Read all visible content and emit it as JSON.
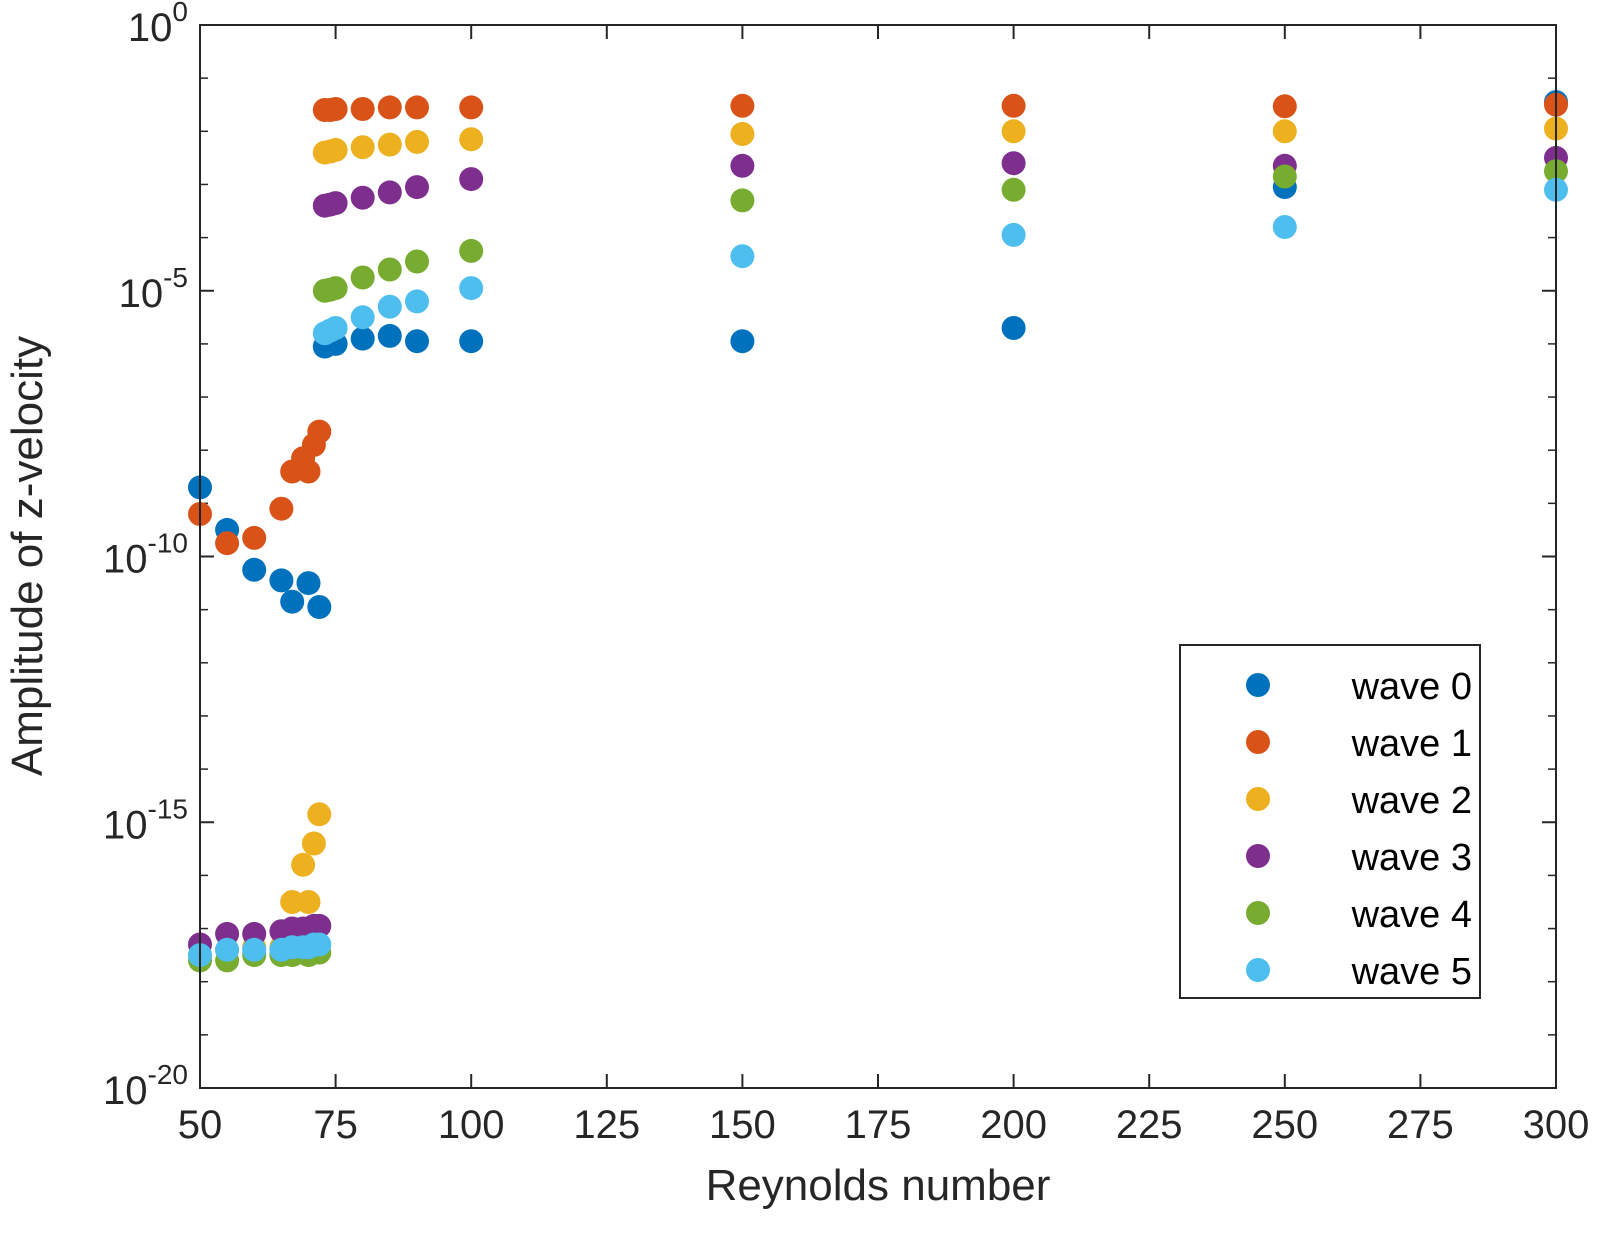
{
  "chart_data": {
    "type": "scatter",
    "xlabel": "Reynolds number",
    "ylabel": "Amplitude of z-velocity",
    "yscale": "log",
    "xlim": [
      50,
      300
    ],
    "ylim_exponents": [
      -20,
      0
    ],
    "x_ticks": [
      "50",
      "75",
      "100",
      "125",
      "150",
      "175",
      "200",
      "225",
      "250",
      "275",
      "300"
    ],
    "y_ticks": [
      {
        "base": "10",
        "exp": "0",
        "value_exp": 0
      },
      {
        "base": "10",
        "exp": "-5",
        "value_exp": -5
      },
      {
        "base": "10",
        "exp": "-10",
        "value_exp": -10
      },
      {
        "base": "10",
        "exp": "-15",
        "value_exp": -15
      },
      {
        "base": "10",
        "exp": "-20",
        "value_exp": -20
      }
    ],
    "legend_position": "lower-right",
    "series": [
      {
        "name": "wave 0",
        "color": "#0072BD",
        "points": [
          [
            50,
            -8.7
          ],
          [
            55,
            -9.5
          ],
          [
            60,
            -10.25
          ],
          [
            65,
            -10.45
          ],
          [
            67,
            -10.85
          ],
          [
            70,
            -10.5
          ],
          [
            72,
            -10.95
          ],
          [
            73,
            -6.05
          ],
          [
            75,
            -6.0
          ],
          [
            80,
            -5.9
          ],
          [
            85,
            -5.85
          ],
          [
            90,
            -5.95
          ],
          [
            100,
            -5.95
          ],
          [
            150,
            -5.95
          ],
          [
            200,
            -5.7
          ],
          [
            250,
            -3.05
          ],
          [
            300,
            -1.45
          ]
        ]
      },
      {
        "name": "wave 1",
        "color": "#D95319",
        "points": [
          [
            50,
            -9.2
          ],
          [
            55,
            -9.75
          ],
          [
            60,
            -9.65
          ],
          [
            65,
            -9.1
          ],
          [
            67,
            -8.4
          ],
          [
            69,
            -8.15
          ],
          [
            70,
            -8.4
          ],
          [
            71,
            -7.9
          ],
          [
            72,
            -7.65
          ],
          [
            73,
            -1.6
          ],
          [
            74,
            -1.6
          ],
          [
            75,
            -1.58
          ],
          [
            80,
            -1.58
          ],
          [
            85,
            -1.55
          ],
          [
            90,
            -1.55
          ],
          [
            100,
            -1.55
          ],
          [
            150,
            -1.52
          ],
          [
            200,
            -1.52
          ],
          [
            250,
            -1.53
          ],
          [
            300,
            -1.5
          ]
        ]
      },
      {
        "name": "wave 2",
        "color": "#EDB120",
        "points": [
          [
            50,
            -17.5
          ],
          [
            55,
            -17.4
          ],
          [
            60,
            -17.35
          ],
          [
            65,
            -17.35
          ],
          [
            67,
            -16.5
          ],
          [
            69,
            -15.8
          ],
          [
            70,
            -16.5
          ],
          [
            71,
            -15.4
          ],
          [
            72,
            -14.85
          ],
          [
            73,
            -2.4
          ],
          [
            74,
            -2.38
          ],
          [
            75,
            -2.35
          ],
          [
            80,
            -2.3
          ],
          [
            85,
            -2.25
          ],
          [
            90,
            -2.2
          ],
          [
            100,
            -2.15
          ],
          [
            150,
            -2.05
          ],
          [
            200,
            -2.0
          ],
          [
            250,
            -2.0
          ],
          [
            300,
            -1.95
          ]
        ]
      },
      {
        "name": "wave 3",
        "color": "#7E2F8E",
        "points": [
          [
            50,
            -17.3
          ],
          [
            55,
            -17.1
          ],
          [
            60,
            -17.1
          ],
          [
            65,
            -17.05
          ],
          [
            67,
            -17.0
          ],
          [
            69,
            -17.0
          ],
          [
            70,
            -17.0
          ],
          [
            71,
            -16.95
          ],
          [
            72,
            -16.95
          ],
          [
            73,
            -3.4
          ],
          [
            74,
            -3.38
          ],
          [
            75,
            -3.35
          ],
          [
            80,
            -3.25
          ],
          [
            85,
            -3.15
          ],
          [
            90,
            -3.05
          ],
          [
            100,
            -2.9
          ],
          [
            150,
            -2.65
          ],
          [
            200,
            -2.6
          ],
          [
            250,
            -2.65
          ],
          [
            300,
            -2.5
          ]
        ]
      },
      {
        "name": "wave 4",
        "color": "#77AC30",
        "points": [
          [
            50,
            -17.6
          ],
          [
            55,
            -17.6
          ],
          [
            60,
            -17.5
          ],
          [
            65,
            -17.5
          ],
          [
            67,
            -17.5
          ],
          [
            69,
            -17.45
          ],
          [
            70,
            -17.5
          ],
          [
            71,
            -17.45
          ],
          [
            72,
            -17.45
          ],
          [
            73,
            -5.0
          ],
          [
            74,
            -4.98
          ],
          [
            75,
            -4.95
          ],
          [
            80,
            -4.75
          ],
          [
            85,
            -4.6
          ],
          [
            90,
            -4.45
          ],
          [
            100,
            -4.25
          ],
          [
            150,
            -3.3
          ],
          [
            200,
            -3.1
          ],
          [
            250,
            -2.85
          ],
          [
            300,
            -2.75
          ]
        ]
      },
      {
        "name": "wave 5",
        "color": "#4DBEEE",
        "points": [
          [
            50,
            -17.5
          ],
          [
            55,
            -17.4
          ],
          [
            60,
            -17.4
          ],
          [
            65,
            -17.4
          ],
          [
            67,
            -17.35
          ],
          [
            69,
            -17.35
          ],
          [
            70,
            -17.35
          ],
          [
            71,
            -17.3
          ],
          [
            72,
            -17.3
          ],
          [
            73,
            -5.8
          ],
          [
            74,
            -5.75
          ],
          [
            75,
            -5.7
          ],
          [
            80,
            -5.5
          ],
          [
            85,
            -5.3
          ],
          [
            90,
            -5.2
          ],
          [
            100,
            -4.95
          ],
          [
            150,
            -4.35
          ],
          [
            200,
            -3.95
          ],
          [
            250,
            -3.8
          ],
          [
            300,
            -3.1
          ]
        ]
      }
    ]
  }
}
